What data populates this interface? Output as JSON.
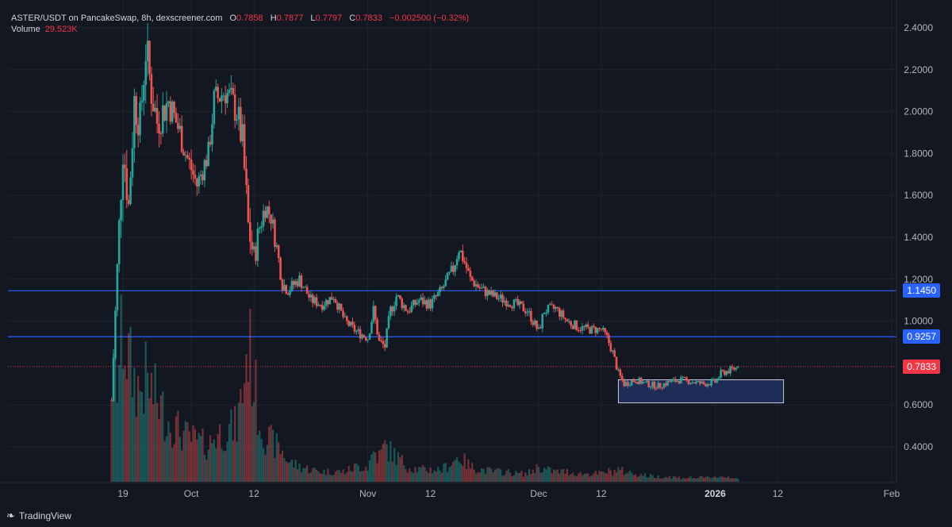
{
  "legend": {
    "pair": "ASTER/USDT on PancakeSwap, 8h, dexscreener.com",
    "o_label": "O",
    "o_value": "0.7858",
    "h_label": "H",
    "h_value": "0.7877",
    "l_label": "L",
    "l_value": "0.7797",
    "c_label": "C",
    "c_value": "0.7833",
    "change": "−0.002500 (−0.32%)"
  },
  "volume": {
    "label": "Volume",
    "value": "29.523K"
  },
  "branding": {
    "name": "TradingView"
  },
  "colors": {
    "background": "#131722",
    "up": "#26a69a",
    "down": "#ef5350",
    "line": "#2962ff",
    "zone_fill": "#1e2c58",
    "last_price": "#f23645"
  },
  "chart_data": {
    "type": "candlestick",
    "title": "ASTER/USDT on PancakeSwap, 8h, dexscreener.com",
    "ylim": [
      0.25,
      2.45
    ],
    "y_ticks": [
      "2.4000",
      "2.2000",
      "2.0000",
      "1.8000",
      "1.6000",
      "1.4000",
      "1.2000",
      "1.0000",
      "0.6000",
      "0.4000"
    ],
    "x_ticks": [
      {
        "label": "19",
        "date": "2025-09-19",
        "bold": false
      },
      {
        "label": "Oct",
        "date": "2025-10-01",
        "bold": false
      },
      {
        "label": "12",
        "date": "2025-10-12",
        "bold": false
      },
      {
        "label": "Nov",
        "date": "2025-11-01",
        "bold": false
      },
      {
        "label": "12",
        "date": "2025-11-12",
        "bold": false
      },
      {
        "label": "Dec",
        "date": "2025-12-01",
        "bold": false
      },
      {
        "label": "12",
        "date": "2025-12-12",
        "bold": false
      },
      {
        "label": "2026",
        "date": "2026-01-01",
        "bold": true
      },
      {
        "label": "12",
        "date": "2026-01-12",
        "bold": false
      },
      {
        "label": "Feb",
        "date": "2026-02-01",
        "bold": false
      }
    ],
    "horizontal_lines": [
      {
        "price": 1.145,
        "label": "1.1450"
      },
      {
        "price": 0.9257,
        "label": "0.9257"
      }
    ],
    "last_price": {
      "price": 0.7833,
      "label": "0.7833"
    },
    "zone": {
      "start": "2025-12-15",
      "end": "2026-01-13",
      "low": 0.61,
      "high": 0.72
    },
    "series": [
      {
        "name": "price_path",
        "points": [
          [
            "2025-09-17",
            0.62,
            1.0
          ],
          [
            "2025-09-18",
            1.25,
            1.0
          ],
          [
            "2025-09-19",
            1.85,
            1.5
          ],
          [
            "2025-09-20",
            1.55,
            1.2
          ],
          [
            "2025-09-21",
            2.05,
            1.0
          ],
          [
            "2025-09-22",
            1.95,
            0.9
          ],
          [
            "2025-09-23",
            2.3,
            1.0
          ],
          [
            "2025-09-24",
            2.1,
            0.9
          ],
          [
            "2025-09-25",
            1.95,
            0.8
          ],
          [
            "2025-09-27",
            2.05,
            0.6
          ],
          [
            "2025-09-29",
            1.9,
            0.5
          ],
          [
            "2025-09-30",
            1.8,
            0.45
          ],
          [
            "2025-10-02",
            1.65,
            0.4
          ],
          [
            "2025-10-04",
            1.8,
            0.35
          ],
          [
            "2025-10-05",
            2.05,
            0.45
          ],
          [
            "2025-10-07",
            2.1,
            0.5
          ],
          [
            "2025-10-09",
            2.0,
            0.55
          ],
          [
            "2025-10-10",
            1.85,
            0.9
          ],
          [
            "2025-10-11",
            1.45,
            1.4
          ],
          [
            "2025-10-12",
            1.3,
            1.0
          ],
          [
            "2025-10-13",
            1.45,
            0.6
          ],
          [
            "2025-10-14",
            1.55,
            0.45
          ],
          [
            "2025-10-15",
            1.5,
            0.4
          ],
          [
            "2025-10-16",
            1.35,
            0.35
          ],
          [
            "2025-10-17",
            1.18,
            0.3
          ],
          [
            "2025-10-18",
            1.15,
            0.2
          ],
          [
            "2025-10-20",
            1.2,
            0.15
          ],
          [
            "2025-10-22",
            1.1,
            0.12
          ],
          [
            "2025-10-24",
            1.08,
            0.1
          ],
          [
            "2025-10-26",
            1.12,
            0.1
          ],
          [
            "2025-10-28",
            1.0,
            0.1
          ],
          [
            "2025-10-30",
            0.95,
            0.15
          ],
          [
            "2025-11-01",
            0.92,
            0.15
          ],
          [
            "2025-11-02",
            1.05,
            0.3
          ],
          [
            "2025-11-03",
            0.9,
            0.25
          ],
          [
            "2025-11-04",
            0.88,
            0.35
          ],
          [
            "2025-11-05",
            1.05,
            0.3
          ],
          [
            "2025-11-06",
            1.12,
            0.25
          ],
          [
            "2025-11-08",
            1.05,
            0.15
          ],
          [
            "2025-11-10",
            1.1,
            0.12
          ],
          [
            "2025-11-12",
            1.08,
            0.12
          ],
          [
            "2025-11-14",
            1.15,
            0.12
          ],
          [
            "2025-11-16",
            1.25,
            0.2
          ],
          [
            "2025-11-17",
            1.35,
            0.25
          ],
          [
            "2025-11-18",
            1.28,
            0.2
          ],
          [
            "2025-11-19",
            1.2,
            0.15
          ],
          [
            "2025-11-21",
            1.15,
            0.12
          ],
          [
            "2025-11-23",
            1.12,
            0.1
          ],
          [
            "2025-11-25",
            1.1,
            0.1
          ],
          [
            "2025-11-27",
            1.08,
            0.08
          ],
          [
            "2025-11-29",
            1.05,
            0.08
          ],
          [
            "2025-12-01",
            0.95,
            0.15
          ],
          [
            "2025-12-02",
            1.05,
            0.12
          ],
          [
            "2025-12-04",
            1.06,
            0.1
          ],
          [
            "2025-12-06",
            1.0,
            0.1
          ],
          [
            "2025-12-08",
            0.97,
            0.08
          ],
          [
            "2025-12-10",
            0.96,
            0.08
          ],
          [
            "2025-12-12",
            0.96,
            0.08
          ],
          [
            "2025-12-13",
            0.92,
            0.1
          ],
          [
            "2025-12-14",
            0.85,
            0.1
          ],
          [
            "2025-12-15",
            0.75,
            0.12
          ],
          [
            "2025-12-16",
            0.7,
            0.1
          ],
          [
            "2025-12-18",
            0.72,
            0.08
          ],
          [
            "2025-12-20",
            0.7,
            0.06
          ],
          [
            "2025-12-22",
            0.69,
            0.05
          ],
          [
            "2025-12-24",
            0.71,
            0.05
          ],
          [
            "2025-12-26",
            0.72,
            0.04
          ],
          [
            "2025-12-28",
            0.71,
            0.04
          ],
          [
            "2025-12-30",
            0.7,
            0.04
          ],
          [
            "2026-01-01",
            0.71,
            0.05
          ],
          [
            "2026-01-02",
            0.75,
            0.05
          ],
          [
            "2026-01-03",
            0.76,
            0.05
          ],
          [
            "2026-01-05",
            0.78,
            0.04
          ]
        ]
      }
    ]
  }
}
